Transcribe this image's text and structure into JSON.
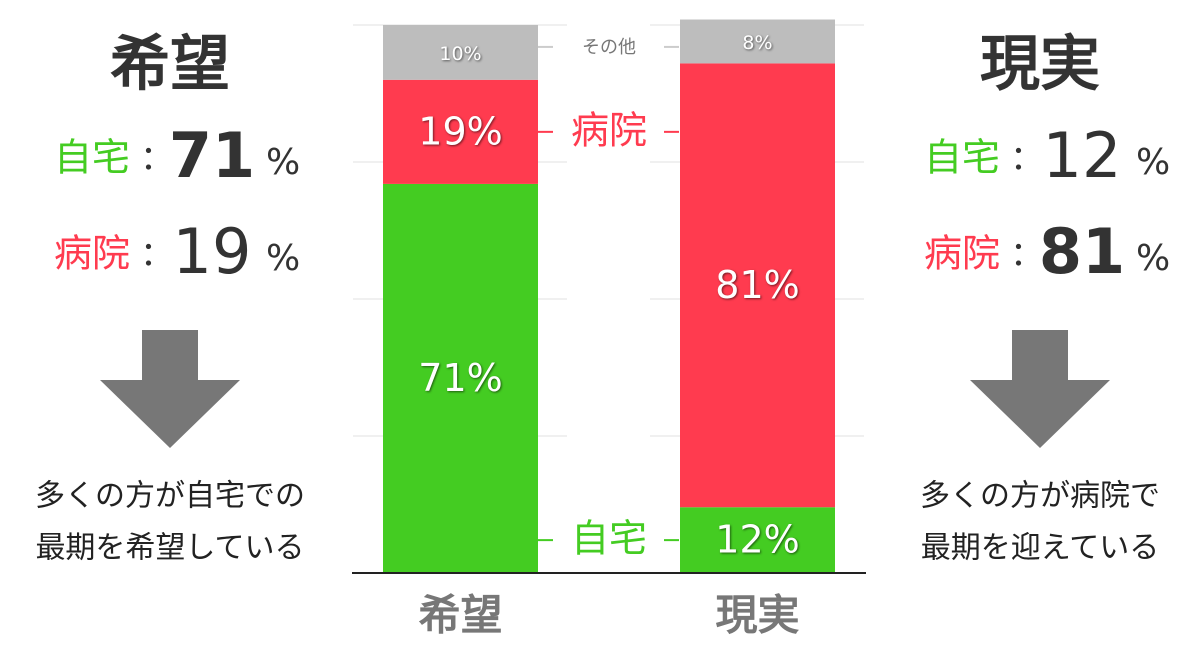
{
  "chart_data": {
    "type": "stacked_bar",
    "categories": [
      "希望",
      "現実"
    ],
    "series": [
      {
        "name": "自宅",
        "color": "#44cc22",
        "values": [
          71,
          12
        ],
        "value_labels": [
          "71%",
          "12%"
        ]
      },
      {
        "name": "病院",
        "color": "#ff3b4f",
        "values": [
          19,
          81
        ],
        "value_labels": [
          "19%",
          "81%"
        ]
      },
      {
        "name": "その他",
        "color": "#bdbdbd",
        "values": [
          10,
          8
        ],
        "value_labels": [
          "10%",
          "8%"
        ]
      }
    ],
    "ylim": [
      0,
      100
    ],
    "yticks": [
      0,
      25,
      50,
      75,
      100
    ],
    "grid": true
  },
  "panels": [
    {
      "title": "希望",
      "rows": [
        {
          "label": "自宅",
          "separator": "：",
          "value": 71,
          "unit": "%"
        },
        {
          "label": "病院",
          "separator": "：",
          "value": 19,
          "unit": "%"
        }
      ],
      "note": [
        "多くの方が自宅での",
        "最期を希望している"
      ]
    },
    {
      "title": "現実",
      "rows": [
        {
          "label": "自宅",
          "separator": "：",
          "value": 12,
          "unit": "%"
        },
        {
          "label": "病院",
          "separator": "：",
          "value": 81,
          "unit": "%"
        }
      ],
      "note": [
        "多くの方が病院で",
        "最期を迎えている"
      ]
    }
  ]
}
